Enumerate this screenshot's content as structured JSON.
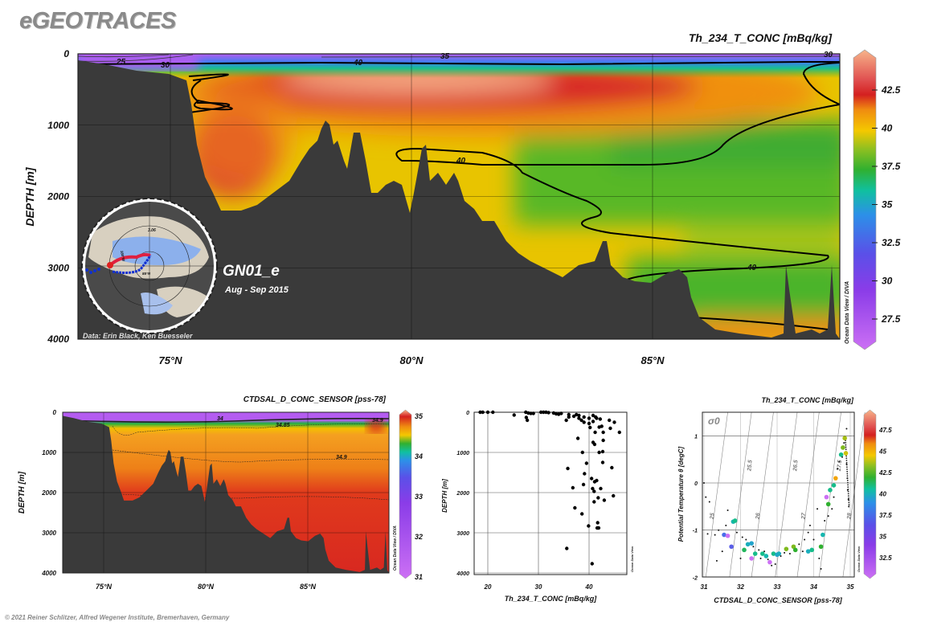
{
  "header": {
    "logo": "eGEOTRACES"
  },
  "footer": {
    "copyright": "© 2021 Reiner Schlitzer, Alfred Wegener Institute, Bremerhaven, Germany"
  },
  "chart_data": [
    {
      "id": "main-section",
      "type": "heatmap",
      "title": "Th_234_T_CONC [mBq/kg]",
      "xlabel": "",
      "ylabel": "DEPTH [m]",
      "xlim": [
        73.1,
        88.9
      ],
      "ylim": [
        4000,
        0
      ],
      "xticks": [
        {
          "value": 75,
          "label": "75°N"
        },
        {
          "value": 80,
          "label": "80°N"
        },
        {
          "value": 85,
          "label": "85°N"
        }
      ],
      "yticks": [
        {
          "value": 0,
          "label": "0"
        },
        {
          "value": 1000,
          "label": "1000"
        },
        {
          "value": 2000,
          "label": "2000"
        },
        {
          "value": 3000,
          "label": "3000"
        },
        {
          "value": 4000,
          "label": "4000"
        }
      ],
      "colorbar": {
        "range": [
          25.7,
          44.9
        ],
        "ticks": [
          "42.5",
          "40",
          "37.5",
          "35",
          "32.5",
          "30",
          "27.5"
        ]
      },
      "contour_labels": [
        "25",
        "30",
        "35",
        "40",
        "40",
        "40",
        "30"
      ],
      "watermark": "Ocean Data View / DIVA",
      "inset": {
        "section": "GN01_e",
        "dates": "Aug - Sep 2015",
        "credit": "Data: Erin Black, Ken Buesseler",
        "map_labels": [
          "3.06",
          "180°W",
          "85°N"
        ]
      },
      "grid": true
    },
    {
      "id": "salinity-section",
      "type": "heatmap",
      "title": "CTDSAL_D_CONC_SENSOR [pss-78]",
      "ylabel": "DEPTH [m]",
      "xlim": [
        73.0,
        89.0
      ],
      "ylim": [
        4000,
        0
      ],
      "xticks": [
        {
          "value": 75,
          "label": "75°N"
        },
        {
          "value": 80,
          "label": "80°N"
        },
        {
          "value": 85,
          "label": "85°N"
        }
      ],
      "yticks": [
        {
          "value": 0,
          "label": "0"
        },
        {
          "value": 1000,
          "label": "1000"
        },
        {
          "value": 2000,
          "label": "2000"
        },
        {
          "value": 3000,
          "label": "3000"
        },
        {
          "value": 4000,
          "label": "4000"
        }
      ],
      "colorbar": {
        "range": [
          31,
          35
        ],
        "ticks": [
          "35",
          "34",
          "33",
          "32",
          "31"
        ]
      },
      "contour_labels": [
        "34",
        "34.85",
        "34.9",
        "34.9"
      ],
      "watermark": "Ocean Data View / DIVA"
    },
    {
      "id": "profile-scatter",
      "type": "scatter",
      "xlabel": "Th_234_T_CONC [mBq/kg]",
      "ylabel": "DEPTH [m]",
      "xlim": [
        17.5,
        47.5
      ],
      "ylim": [
        4100,
        0
      ],
      "xticks": [
        {
          "value": 20,
          "label": "20"
        },
        {
          "value": 30,
          "label": "30"
        },
        {
          "value": 40,
          "label": "40"
        }
      ],
      "yticks": [
        {
          "value": 0,
          "label": "0"
        },
        {
          "value": 1000,
          "label": "1000"
        },
        {
          "value": 2000,
          "label": "2000"
        },
        {
          "value": 3000,
          "label": "3000"
        },
        {
          "value": 4000,
          "label": "4000"
        }
      ],
      "watermark": "Ocean Data View",
      "points": [
        [
          18.5,
          0
        ],
        [
          19,
          0
        ],
        [
          20,
          0
        ],
        [
          21,
          0
        ],
        [
          25.2,
          70
        ],
        [
          27.5,
          0
        ],
        [
          27.6,
          130
        ],
        [
          27.8,
          200
        ],
        [
          28,
          20
        ],
        [
          28.5,
          30
        ],
        [
          29,
          30
        ],
        [
          30.5,
          0
        ],
        [
          31,
          0
        ],
        [
          31.5,
          0
        ],
        [
          32,
          10
        ],
        [
          33,
          20
        ],
        [
          33.5,
          40
        ],
        [
          34,
          50
        ],
        [
          34.5,
          30
        ],
        [
          35.5,
          200
        ],
        [
          36,
          60
        ],
        [
          36,
          120
        ],
        [
          37,
          100
        ],
        [
          37.5,
          60
        ],
        [
          38,
          80
        ],
        [
          38,
          150
        ],
        [
          38.5,
          200
        ],
        [
          39,
          120
        ],
        [
          39,
          250
        ],
        [
          40,
          150
        ],
        [
          40,
          280
        ],
        [
          40.2,
          380
        ],
        [
          40.8,
          80
        ],
        [
          40.8,
          230
        ],
        [
          41.3,
          120
        ],
        [
          41.5,
          150
        ],
        [
          42,
          370
        ],
        [
          42.2,
          170
        ],
        [
          42.5,
          350
        ],
        [
          42.8,
          500
        ],
        [
          44,
          200
        ],
        [
          44.2,
          400
        ],
        [
          45,
          250
        ],
        [
          46,
          500
        ],
        [
          41.2,
          500
        ],
        [
          37.8,
          650
        ],
        [
          40.8,
          750
        ],
        [
          41.1,
          800
        ],
        [
          42.8,
          700
        ],
        [
          38.7,
          1000
        ],
        [
          42,
          1000
        ],
        [
          42.7,
          980
        ],
        [
          42.7,
          1250
        ],
        [
          39.5,
          1270
        ],
        [
          35.8,
          1400
        ],
        [
          44.5,
          1380
        ],
        [
          39.1,
          1530
        ],
        [
          40.5,
          1650
        ],
        [
          41.5,
          1700
        ],
        [
          41.1,
          1730
        ],
        [
          36.8,
          1880
        ],
        [
          38.9,
          1800
        ],
        [
          40.7,
          1900
        ],
        [
          41,
          1970
        ],
        [
          42.3,
          1900
        ],
        [
          44.8,
          2080
        ],
        [
          41.8,
          2130
        ],
        [
          41,
          2230
        ],
        [
          43,
          2190
        ],
        [
          37.2,
          2380
        ],
        [
          38.6,
          2530
        ],
        [
          39.9,
          2830
        ],
        [
          41.7,
          2750
        ],
        [
          41.6,
          2880
        ],
        [
          41.9,
          2880
        ],
        [
          35.6,
          3390
        ],
        [
          40.6,
          3770
        ]
      ]
    },
    {
      "id": "ts-diagram",
      "type": "scatter",
      "title": "Th_234_T_CONC [mBq/kg]",
      "xlabel": "CTDSAL_D_CONC_SENSOR [pss-78]",
      "ylabel": "Potential Temperature θ [degC]",
      "xlim": [
        31,
        35.1
      ],
      "ylim": [
        -2,
        1.5
      ],
      "xticks": [
        {
          "value": 31,
          "label": "31"
        },
        {
          "value": 32,
          "label": "32"
        },
        {
          "value": 33,
          "label": "33"
        },
        {
          "value": 34,
          "label": "34"
        },
        {
          "value": 35,
          "label": "35"
        }
      ],
      "yticks": [
        {
          "value": 1,
          "label": "1"
        },
        {
          "value": 0,
          "label": "0"
        },
        {
          "value": -1,
          "label": "-1"
        },
        {
          "value": -2,
          "label": "-2"
        }
      ],
      "colorbar": {
        "range": [
          30,
          49.5
        ],
        "ticks": [
          "47.5",
          "45",
          "42.5",
          "40",
          "37.5",
          "35",
          "32.5"
        ]
      },
      "density_symbol": "σ0",
      "isopycnals": [
        {
          "label": "25",
          "s": 31.05
        },
        {
          "label": "25.5",
          "s": 31.7
        },
        {
          "label": "26",
          "s": 32.3
        },
        {
          "label": "26.5",
          "s": 32.95
        },
        {
          "label": "27",
          "s": 33.55
        },
        {
          "label": "27.5",
          "s": 34.15
        },
        {
          "label": "28",
          "s": 34.8
        }
      ],
      "watermark": "Ocean Data View",
      "colored_points": [
        [
          31.55,
          -1.1,
          34
        ],
        [
          31.65,
          -1.12,
          29
        ],
        [
          31.75,
          -1.35,
          33.5
        ],
        [
          31.8,
          -0.82,
          37
        ],
        [
          31.85,
          -0.8,
          38
        ],
        [
          32.1,
          -1.42,
          39
        ],
        [
          32.2,
          -1.3,
          36.5
        ],
        [
          32.3,
          -1.28,
          36
        ],
        [
          32.3,
          -1.6,
          29
        ],
        [
          32.4,
          -1.5,
          38
        ],
        [
          32.6,
          -1.5,
          38
        ],
        [
          32.7,
          -1.55,
          37
        ],
        [
          32.8,
          -1.68,
          29
        ],
        [
          32.9,
          -1.5,
          38
        ],
        [
          33.0,
          -1.52,
          36
        ],
        [
          33.05,
          -1.5,
          36.5
        ],
        [
          33.25,
          -1.4,
          41
        ],
        [
          33.45,
          -1.35,
          41
        ],
        [
          33.5,
          -1.42,
          40
        ],
        [
          33.85,
          -1.45,
          36.5
        ],
        [
          33.95,
          -1.42,
          38
        ],
        [
          34.2,
          -1.35,
          40
        ],
        [
          34.25,
          -1.1,
          37
        ],
        [
          34.35,
          -0.3,
          29
        ],
        [
          34.4,
          -0.45,
          40
        ],
        [
          34.45,
          -0.15,
          38
        ],
        [
          34.55,
          -0.05,
          38
        ],
        [
          34.6,
          0.1,
          44
        ],
        [
          34.75,
          0.6,
          38
        ],
        [
          34.8,
          0.75,
          41
        ],
        [
          34.85,
          0.95,
          41.5
        ],
        [
          34.88,
          0.63,
          42
        ]
      ],
      "small_points": [
        [
          31.0,
          0
        ],
        [
          31.05,
          -0.3
        ],
        [
          31.1,
          -1.08
        ],
        [
          31.15,
          -0.4
        ],
        [
          31.3,
          -1.1
        ],
        [
          31.35,
          -1.65
        ],
        [
          31.4,
          -1.0
        ],
        [
          31.5,
          -1.45
        ],
        [
          31.6,
          -0.9
        ],
        [
          31.65,
          -0.58
        ],
        [
          31.9,
          -1.05
        ],
        [
          32.0,
          -1.6
        ],
        [
          32.05,
          -1.15
        ],
        [
          32.15,
          -1.2
        ],
        [
          32.35,
          -1.35
        ],
        [
          32.5,
          -1.42
        ],
        [
          32.55,
          -1.6
        ],
        [
          32.65,
          -1.45
        ],
        [
          32.75,
          -1.62
        ],
        [
          32.85,
          -1.75
        ],
        [
          32.95,
          -1.72
        ],
        [
          33.1,
          -1.55
        ],
        [
          33.2,
          -1.48
        ],
        [
          33.35,
          -1.5
        ],
        [
          33.6,
          -1.3
        ],
        [
          33.7,
          -1.45
        ],
        [
          33.75,
          -1.2
        ],
        [
          33.85,
          -1.05
        ],
        [
          33.9,
          -0.9
        ],
        [
          34.0,
          -1.2
        ],
        [
          34.1,
          -0.55
        ],
        [
          34.15,
          -1.6
        ],
        [
          34.2,
          -1.82
        ],
        [
          34.3,
          -0.8
        ],
        [
          34.4,
          -0.7
        ],
        [
          34.5,
          -0.55
        ],
        [
          34.55,
          -0.3
        ],
        [
          34.65,
          0.3
        ],
        [
          34.7,
          0.45
        ],
        [
          34.78,
          0.55
        ],
        [
          34.83,
          0.85
        ],
        [
          34.9,
          0.4
        ],
        [
          34.92,
          0.1
        ],
        [
          34.93,
          -0.15
        ],
        [
          34.95,
          -0.35
        ],
        [
          34.96,
          -0.5
        ],
        [
          34.9,
          1.15
        ]
      ]
    }
  ]
}
